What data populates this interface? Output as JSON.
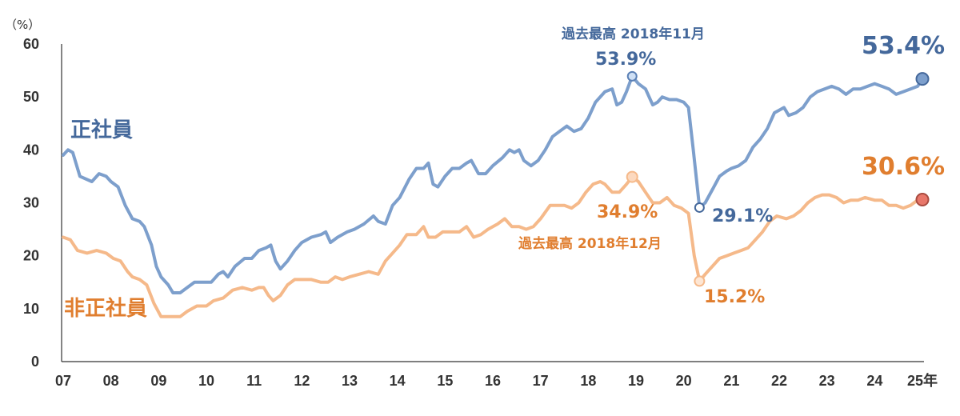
{
  "chart_data": {
    "type": "line",
    "y_unit_label": "（%）",
    "ylim": [
      0,
      60
    ],
    "y_ticks": [
      "60",
      "50",
      "40",
      "30",
      "20",
      "10",
      "0"
    ],
    "xlim": [
      2007.0,
      2025.0
    ],
    "x_ticks": [
      "07",
      "08",
      "09",
      "10",
      "11",
      "12",
      "13",
      "14",
      "15",
      "16",
      "17",
      "18",
      "19",
      "20",
      "21",
      "22",
      "23",
      "24",
      "25年"
    ],
    "grid": false,
    "colors": {
      "regular": "#7d9fcc",
      "nonregular": "#f5b98a",
      "regular_text": "#44689b",
      "nonregular_text": "#e07e2f",
      "axis": "#333333"
    },
    "series": [
      {
        "name": "正社員",
        "key": "regular",
        "points": [
          [
            2007.0,
            39
          ],
          [
            2007.1,
            40
          ],
          [
            2007.2,
            39.5
          ],
          [
            2007.35,
            35
          ],
          [
            2007.6,
            34
          ],
          [
            2007.75,
            35.5
          ],
          [
            2007.9,
            35
          ],
          [
            2008.0,
            34
          ],
          [
            2008.15,
            33
          ],
          [
            2008.3,
            29.5
          ],
          [
            2008.45,
            27
          ],
          [
            2008.6,
            26.5
          ],
          [
            2008.7,
            25.5
          ],
          [
            2008.85,
            22
          ],
          [
            2008.95,
            18
          ],
          [
            2009.05,
            16
          ],
          [
            2009.2,
            14.5
          ],
          [
            2009.3,
            13
          ],
          [
            2009.45,
            13
          ],
          [
            2009.6,
            14
          ],
          [
            2009.75,
            15
          ],
          [
            2009.95,
            15
          ],
          [
            2010.1,
            15
          ],
          [
            2010.25,
            16.5
          ],
          [
            2010.35,
            17
          ],
          [
            2010.45,
            16
          ],
          [
            2010.6,
            18
          ],
          [
            2010.8,
            19.5
          ],
          [
            2010.95,
            19.5
          ],
          [
            2011.1,
            21
          ],
          [
            2011.25,
            21.5
          ],
          [
            2011.35,
            22
          ],
          [
            2011.45,
            19
          ],
          [
            2011.55,
            17.5
          ],
          [
            2011.7,
            19
          ],
          [
            2011.85,
            21
          ],
          [
            2012.0,
            22.5
          ],
          [
            2012.2,
            23.5
          ],
          [
            2012.4,
            24
          ],
          [
            2012.5,
            24.5
          ],
          [
            2012.6,
            22.5
          ],
          [
            2012.75,
            23.5
          ],
          [
            2012.95,
            24.5
          ],
          [
            2013.1,
            25
          ],
          [
            2013.3,
            26
          ],
          [
            2013.5,
            27.5
          ],
          [
            2013.6,
            26.5
          ],
          [
            2013.75,
            26
          ],
          [
            2013.9,
            29.5
          ],
          [
            2014.05,
            31
          ],
          [
            2014.25,
            34.5
          ],
          [
            2014.4,
            36.5
          ],
          [
            2014.55,
            36.5
          ],
          [
            2014.65,
            37.5
          ],
          [
            2014.75,
            33.5
          ],
          [
            2014.85,
            33
          ],
          [
            2015.0,
            35
          ],
          [
            2015.15,
            36.5
          ],
          [
            2015.3,
            36.5
          ],
          [
            2015.45,
            37.5
          ],
          [
            2015.55,
            38
          ],
          [
            2015.7,
            35.5
          ],
          [
            2015.85,
            35.5
          ],
          [
            2016.0,
            37
          ],
          [
            2016.2,
            38.5
          ],
          [
            2016.35,
            40
          ],
          [
            2016.45,
            39.5
          ],
          [
            2016.55,
            40
          ],
          [
            2016.65,
            38
          ],
          [
            2016.8,
            37
          ],
          [
            2016.95,
            38
          ],
          [
            2017.1,
            40
          ],
          [
            2017.25,
            42.5
          ],
          [
            2017.4,
            43.5
          ],
          [
            2017.55,
            44.5
          ],
          [
            2017.7,
            43.5
          ],
          [
            2017.85,
            44
          ],
          [
            2018.0,
            46
          ],
          [
            2018.15,
            49
          ],
          [
            2018.35,
            51
          ],
          [
            2018.5,
            51.5
          ],
          [
            2018.6,
            48.5
          ],
          [
            2018.7,
            49
          ],
          [
            2018.8,
            51
          ],
          [
            2018.92,
            53.9
          ],
          [
            2019.05,
            52.5
          ],
          [
            2019.2,
            51.5
          ],
          [
            2019.35,
            48.5
          ],
          [
            2019.45,
            49
          ],
          [
            2019.55,
            50
          ],
          [
            2019.7,
            49.5
          ],
          [
            2019.85,
            49.5
          ],
          [
            2020.0,
            49
          ],
          [
            2020.1,
            48
          ],
          [
            2020.2,
            40
          ],
          [
            2020.33,
            29.1
          ],
          [
            2020.45,
            30
          ],
          [
            2020.6,
            32.5
          ],
          [
            2020.75,
            35
          ],
          [
            2020.9,
            36
          ],
          [
            2021.0,
            36.5
          ],
          [
            2021.15,
            37
          ],
          [
            2021.3,
            38
          ],
          [
            2021.45,
            40.5
          ],
          [
            2021.6,
            42
          ],
          [
            2021.75,
            44
          ],
          [
            2021.9,
            47
          ],
          [
            2022.0,
            47.5
          ],
          [
            2022.1,
            48
          ],
          [
            2022.2,
            46.5
          ],
          [
            2022.35,
            47
          ],
          [
            2022.5,
            48
          ],
          [
            2022.65,
            50
          ],
          [
            2022.8,
            51
          ],
          [
            2022.95,
            51.5
          ],
          [
            2023.1,
            52
          ],
          [
            2023.25,
            51.5
          ],
          [
            2023.4,
            50.5
          ],
          [
            2023.55,
            51.5
          ],
          [
            2023.7,
            51.5
          ],
          [
            2023.85,
            52
          ],
          [
            2024.0,
            52.5
          ],
          [
            2024.15,
            52
          ],
          [
            2024.3,
            51.5
          ],
          [
            2024.45,
            50.5
          ],
          [
            2024.6,
            51
          ],
          [
            2024.75,
            51.5
          ],
          [
            2024.9,
            52
          ],
          [
            2025.0,
            53.4
          ]
        ]
      },
      {
        "name": "非正社員",
        "key": "nonregular",
        "points": [
          [
            2007.0,
            23.5
          ],
          [
            2007.15,
            23
          ],
          [
            2007.3,
            21
          ],
          [
            2007.5,
            20.5
          ],
          [
            2007.7,
            21
          ],
          [
            2007.9,
            20.5
          ],
          [
            2008.05,
            19.5
          ],
          [
            2008.2,
            19
          ],
          [
            2008.35,
            17
          ],
          [
            2008.45,
            16
          ],
          [
            2008.6,
            15.5
          ],
          [
            2008.75,
            14.5
          ],
          [
            2008.9,
            11
          ],
          [
            2009.05,
            8.5
          ],
          [
            2009.3,
            8.5
          ],
          [
            2009.45,
            8.5
          ],
          [
            2009.6,
            9.5
          ],
          [
            2009.8,
            10.5
          ],
          [
            2010.0,
            10.5
          ],
          [
            2010.15,
            11.5
          ],
          [
            2010.35,
            12
          ],
          [
            2010.55,
            13.5
          ],
          [
            2010.75,
            14
          ],
          [
            2010.95,
            13.5
          ],
          [
            2011.1,
            14
          ],
          [
            2011.2,
            14
          ],
          [
            2011.3,
            12.5
          ],
          [
            2011.4,
            11.5
          ],
          [
            2011.55,
            12.5
          ],
          [
            2011.7,
            14.5
          ],
          [
            2011.85,
            15.5
          ],
          [
            2012.0,
            15.5
          ],
          [
            2012.2,
            15.5
          ],
          [
            2012.4,
            15
          ],
          [
            2012.55,
            15
          ],
          [
            2012.7,
            16
          ],
          [
            2012.85,
            15.5
          ],
          [
            2013.0,
            16
          ],
          [
            2013.2,
            16.5
          ],
          [
            2013.4,
            17
          ],
          [
            2013.6,
            16.5
          ],
          [
            2013.75,
            19
          ],
          [
            2013.9,
            20.5
          ],
          [
            2014.05,
            22
          ],
          [
            2014.2,
            24
          ],
          [
            2014.4,
            24
          ],
          [
            2014.55,
            25.5
          ],
          [
            2014.65,
            23.5
          ],
          [
            2014.8,
            23.5
          ],
          [
            2014.95,
            24.5
          ],
          [
            2015.15,
            24.5
          ],
          [
            2015.3,
            24.5
          ],
          [
            2015.45,
            25.5
          ],
          [
            2015.6,
            23.5
          ],
          [
            2015.75,
            24
          ],
          [
            2015.9,
            25
          ],
          [
            2016.1,
            26
          ],
          [
            2016.25,
            27
          ],
          [
            2016.4,
            25.5
          ],
          [
            2016.55,
            25.5
          ],
          [
            2016.7,
            25
          ],
          [
            2016.85,
            25.5
          ],
          [
            2017.0,
            27
          ],
          [
            2017.2,
            29.5
          ],
          [
            2017.35,
            29.5
          ],
          [
            2017.5,
            29.5
          ],
          [
            2017.65,
            29
          ],
          [
            2017.8,
            30
          ],
          [
            2017.95,
            32
          ],
          [
            2018.1,
            33.5
          ],
          [
            2018.25,
            34
          ],
          [
            2018.35,
            33.5
          ],
          [
            2018.5,
            32
          ],
          [
            2018.65,
            32
          ],
          [
            2018.8,
            33.5
          ],
          [
            2018.92,
            34.9
          ],
          [
            2019.05,
            34
          ],
          [
            2019.2,
            32
          ],
          [
            2019.35,
            30
          ],
          [
            2019.5,
            30
          ],
          [
            2019.65,
            31
          ],
          [
            2019.8,
            29.5
          ],
          [
            2019.95,
            29
          ],
          [
            2020.1,
            28
          ],
          [
            2020.22,
            20
          ],
          [
            2020.33,
            15.2
          ],
          [
            2020.45,
            16.5
          ],
          [
            2020.6,
            18
          ],
          [
            2020.75,
            19.5
          ],
          [
            2020.9,
            20
          ],
          [
            2021.05,
            20.5
          ],
          [
            2021.2,
            21
          ],
          [
            2021.35,
            21.5
          ],
          [
            2021.5,
            23
          ],
          [
            2021.65,
            24.5
          ],
          [
            2021.8,
            26.5
          ],
          [
            2021.95,
            27.5
          ],
          [
            2022.15,
            27
          ],
          [
            2022.3,
            27.5
          ],
          [
            2022.45,
            28.5
          ],
          [
            2022.6,
            30
          ],
          [
            2022.75,
            31
          ],
          [
            2022.9,
            31.5
          ],
          [
            2023.05,
            31.5
          ],
          [
            2023.2,
            31
          ],
          [
            2023.35,
            30
          ],
          [
            2023.5,
            30.5
          ],
          [
            2023.65,
            30.5
          ],
          [
            2023.8,
            31
          ],
          [
            2024.0,
            30.5
          ],
          [
            2024.15,
            30.5
          ],
          [
            2024.3,
            29.5
          ],
          [
            2024.45,
            29.5
          ],
          [
            2024.6,
            29
          ],
          [
            2024.75,
            29.5
          ],
          [
            2024.9,
            30.5
          ],
          [
            2025.0,
            30.6
          ]
        ]
      }
    ],
    "annotations": {
      "regular_peak_caption": "過去最高 2018年11月",
      "regular_peak_value": "53.9%",
      "regular_low_value": "29.1%",
      "regular_latest_value": "53.4%",
      "nonregular_peak_caption": "過去最高 2018年12月",
      "nonregular_peak_value": "34.9%",
      "nonregular_low_value": "15.2%",
      "nonregular_latest_value": "30.6%"
    }
  }
}
